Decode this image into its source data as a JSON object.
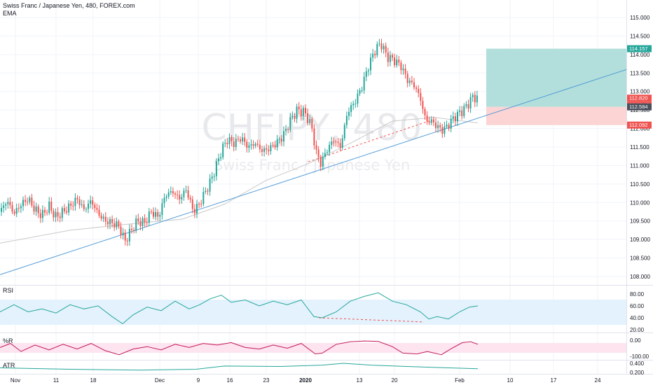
{
  "header": {
    "symbol_line": "Swiss Franc / Japanese Yen, 480, FOREX.com",
    "indicator": "EMA"
  },
  "watermark": {
    "ticker": "CHFJPY, 480",
    "name": "Swiss Franc / Japanese Yen"
  },
  "panes": {
    "rsi_label": "RSI",
    "rr_label": "%R",
    "atr_label": "ATR"
  },
  "price_axis": {
    "ticks": [
      "115.000",
      "114.500",
      "114.000",
      "113.500",
      "113.000",
      "112.500",
      "112.000",
      "111.500",
      "111.000",
      "110.500",
      "110.000",
      "109.500",
      "109.000",
      "108.500",
      "108.000"
    ]
  },
  "rsi_axis": {
    "ticks": [
      "80.00",
      "60.00",
      "40.00",
      "20.00"
    ]
  },
  "rr_axis": {
    "ticks": [
      "0.00",
      "-100.00"
    ]
  },
  "atr_axis": {
    "ticks": [
      "0.400",
      "0.200"
    ]
  },
  "time_axis": {
    "ticks": [
      "Nov",
      "11",
      "18",
      "Dec",
      "9",
      "16",
      "23",
      "2020",
      "13",
      "20",
      "Feb",
      "10",
      "17",
      "24"
    ]
  },
  "price_tags": [
    {
      "label": "114.157",
      "color": "#26a69a"
    },
    {
      "label": "112.820",
      "color": "#ef5350"
    },
    {
      "label": "06:08:45",
      "color": "#ef5350"
    },
    {
      "label": "112.584",
      "color": "#4a4f5c"
    },
    {
      "label": "112.092",
      "color": "#ef5350"
    }
  ],
  "colors": {
    "up": "#26a69a",
    "down": "#ef5350",
    "trendline": "#4f9ad8",
    "ema": "#c9c9c9",
    "target_zone": "#b2dfdb",
    "stop_zone": "#fcd4d4",
    "rsi_band": "#e3f2fd",
    "rr_band": "#fde4ee"
  },
  "chart_data": {
    "type": "candlestick",
    "symbol": "CHFJPY",
    "timeframe": "480",
    "y_range": [
      107.85,
      115.35
    ],
    "position_tool": {
      "target": 114.157,
      "entry": 112.584,
      "stop": 112.092
    },
    "last_price": 112.82,
    "close_path": [
      [
        0,
        109.75
      ],
      [
        10,
        110.05
      ],
      [
        20,
        109.7
      ],
      [
        30,
        109.95
      ],
      [
        40,
        110.1
      ],
      [
        50,
        109.8
      ],
      [
        60,
        109.65
      ],
      [
        70,
        109.9
      ],
      [
        80,
        109.6
      ],
      [
        90,
        109.75
      ],
      [
        100,
        109.9
      ],
      [
        110,
        110.1
      ],
      [
        120,
        109.8
      ],
      [
        130,
        110.05
      ],
      [
        140,
        109.7
      ],
      [
        150,
        109.5
      ],
      [
        160,
        109.45
      ],
      [
        170,
        109.35
      ],
      [
        178,
        108.95
      ],
      [
        186,
        109.2
      ],
      [
        196,
        109.5
      ],
      [
        206,
        109.45
      ],
      [
        216,
        109.75
      ],
      [
        226,
        109.6
      ],
      [
        236,
        110.2
      ],
      [
        246,
        110.3
      ],
      [
        256,
        110.1
      ],
      [
        266,
        110.35
      ],
      [
        276,
        109.75
      ],
      [
        284,
        109.95
      ],
      [
        292,
        110.25
      ],
      [
        300,
        110.55
      ],
      [
        308,
        110.95
      ],
      [
        316,
        111.4
      ],
      [
        324,
        111.7
      ],
      [
        334,
        111.6
      ],
      [
        344,
        111.75
      ],
      [
        354,
        111.5
      ],
      [
        364,
        111.6
      ],
      [
        374,
        111.4
      ],
      [
        384,
        111.45
      ],
      [
        394,
        111.6
      ],
      [
        404,
        111.8
      ],
      [
        414,
        112.2
      ],
      [
        424,
        112.5
      ],
      [
        434,
        112.45
      ],
      [
        444,
        112.1
      ],
      [
        452,
        111.3
      ],
      [
        458,
        111.05
      ],
      [
        466,
        111.4
      ],
      [
        476,
        111.7
      ],
      [
        486,
        111.5
      ],
      [
        496,
        112.45
      ],
      [
        506,
        112.7
      ],
      [
        516,
        113.1
      ],
      [
        526,
        113.7
      ],
      [
        536,
        114.15
      ],
      [
        544,
        114.3
      ],
      [
        552,
        113.95
      ],
      [
        562,
        113.85
      ],
      [
        572,
        113.7
      ],
      [
        582,
        113.3
      ],
      [
        592,
        113.15
      ],
      [
        600,
        112.8
      ],
      [
        608,
        112.2
      ],
      [
        616,
        112.2
      ],
      [
        624,
        112.05
      ],
      [
        632,
        111.95
      ],
      [
        640,
        112.1
      ],
      [
        648,
        112.3
      ],
      [
        658,
        112.45
      ],
      [
        666,
        112.6
      ],
      [
        674,
        112.85
      ],
      [
        682,
        112.82
      ]
    ],
    "ema_path": [
      [
        0,
        108.9
      ],
      [
        100,
        109.25
      ],
      [
        200,
        109.45
      ],
      [
        260,
        109.55
      ],
      [
        320,
        109.95
      ],
      [
        380,
        110.6
      ],
      [
        440,
        111.05
      ],
      [
        500,
        111.6
      ],
      [
        560,
        112.2
      ],
      [
        620,
        112.3
      ],
      [
        682,
        112.15
      ]
    ],
    "trendline": {
      "from": [
        0,
        108.05
      ],
      "to": [
        895,
        113.6
      ]
    },
    "dashed_line": {
      "from": [
        440,
        111.1
      ],
      "to": [
        612,
        112.2
      ]
    },
    "rsi_path": [
      [
        0,
        50
      ],
      [
        20,
        62
      ],
      [
        40,
        50
      ],
      [
        60,
        55
      ],
      [
        80,
        48
      ],
      [
        100,
        62
      ],
      [
        120,
        55
      ],
      [
        140,
        60
      ],
      [
        160,
        42
      ],
      [
        175,
        30
      ],
      [
        190,
        45
      ],
      [
        210,
        58
      ],
      [
        230,
        52
      ],
      [
        250,
        68
      ],
      [
        270,
        55
      ],
      [
        285,
        62
      ],
      [
        300,
        72
      ],
      [
        316,
        78
      ],
      [
        330,
        66
      ],
      [
        350,
        70
      ],
      [
        370,
        60
      ],
      [
        390,
        68
      ],
      [
        410,
        62
      ],
      [
        430,
        70
      ],
      [
        448,
        42
      ],
      [
        460,
        40
      ],
      [
        480,
        50
      ],
      [
        500,
        68
      ],
      [
        520,
        76
      ],
      [
        540,
        82
      ],
      [
        550,
        75
      ],
      [
        560,
        68
      ],
      [
        580,
        62
      ],
      [
        600,
        50
      ],
      [
        612,
        38
      ],
      [
        624,
        42
      ],
      [
        640,
        38
      ],
      [
        656,
        50
      ],
      [
        670,
        58
      ],
      [
        682,
        60
      ]
    ],
    "rr_path": [
      [
        0,
        -45
      ],
      [
        15,
        -20
      ],
      [
        30,
        -70
      ],
      [
        50,
        -30
      ],
      [
        70,
        -60
      ],
      [
        90,
        -25
      ],
      [
        110,
        -55
      ],
      [
        130,
        -20
      ],
      [
        150,
        -65
      ],
      [
        170,
        -90
      ],
      [
        190,
        -55
      ],
      [
        210,
        -40
      ],
      [
        230,
        -60
      ],
      [
        250,
        -25
      ],
      [
        270,
        -45
      ],
      [
        290,
        -20
      ],
      [
        310,
        -30
      ],
      [
        330,
        -15
      ],
      [
        350,
        -45
      ],
      [
        370,
        -55
      ],
      [
        390,
        -30
      ],
      [
        410,
        -50
      ],
      [
        430,
        -20
      ],
      [
        450,
        -85
      ],
      [
        460,
        -80
      ],
      [
        480,
        -25
      ],
      [
        500,
        -10
      ],
      [
        520,
        -5
      ],
      [
        540,
        -8
      ],
      [
        560,
        -40
      ],
      [
        575,
        -80
      ],
      [
        595,
        -85
      ],
      [
        610,
        -70
      ],
      [
        630,
        -90
      ],
      [
        645,
        -50
      ],
      [
        660,
        -15
      ],
      [
        672,
        -10
      ],
      [
        682,
        -25
      ]
    ],
    "atr_path": [
      [
        0,
        0.3
      ],
      [
        100,
        0.27
      ],
      [
        200,
        0.25
      ],
      [
        280,
        0.27
      ],
      [
        320,
        0.34
      ],
      [
        400,
        0.33
      ],
      [
        460,
        0.36
      ],
      [
        490,
        0.4
      ],
      [
        530,
        0.36
      ],
      [
        580,
        0.33
      ],
      [
        640,
        0.3
      ],
      [
        682,
        0.28
      ]
    ]
  }
}
